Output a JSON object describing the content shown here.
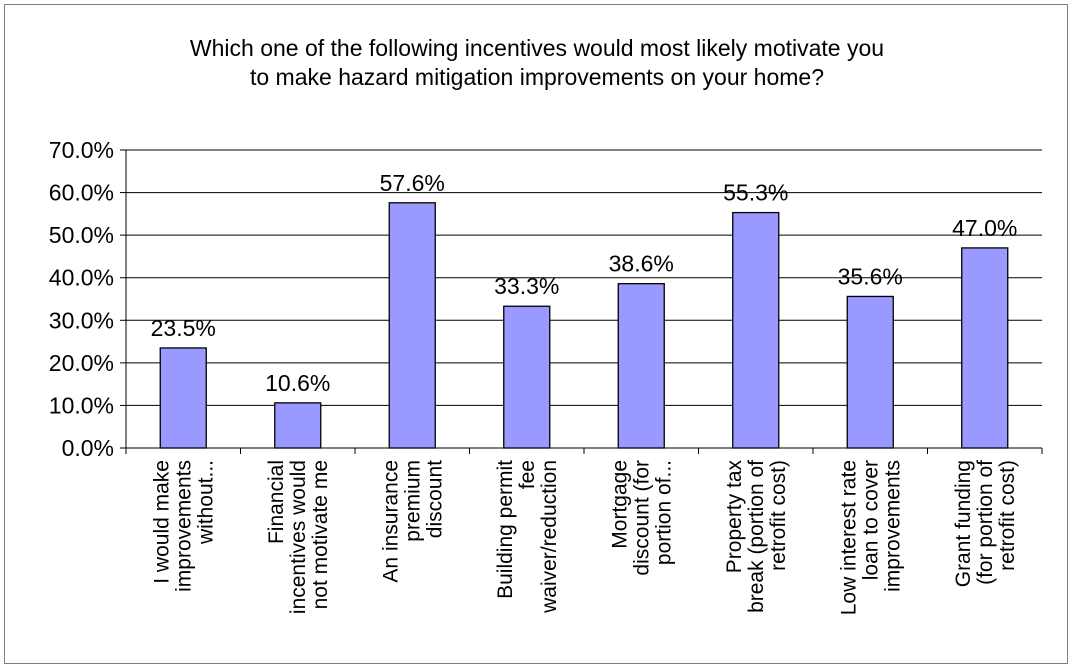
{
  "chart_data": {
    "type": "bar",
    "title_lines": [
      "Which one of the following incentives would most likely motivate you",
      "to make hazard mitigation improvements on your home?"
    ],
    "categories": [
      [
        "I would make",
        "improvements",
        "without..."
      ],
      [
        "Financial",
        "incentives would",
        "not motivate me"
      ],
      [
        "An insurance",
        "premium",
        "discount"
      ],
      [
        "Building permit",
        "fee",
        "waiver/reduction"
      ],
      [
        "Mortgage",
        "discount (for",
        "portion of..."
      ],
      [
        "Property tax",
        "break (portion of",
        "retrofit cost)"
      ],
      [
        "Low interest rate",
        "loan to cover",
        "improvements"
      ],
      [
        "Grant funding",
        "(for portion of",
        "retrofit cost)"
      ]
    ],
    "values": [
      23.5,
      10.6,
      57.6,
      33.3,
      38.6,
      55.3,
      35.6,
      47.0
    ],
    "data_labels": [
      "23.5%",
      "10.6%",
      "57.6%",
      "33.3%",
      "38.6%",
      "55.3%",
      "35.6%",
      "47.0%"
    ],
    "ylim": [
      0,
      70
    ],
    "yticks": [
      0,
      10,
      20,
      30,
      40,
      50,
      60,
      70
    ],
    "ytick_labels": [
      "0.0%",
      "10.0%",
      "20.0%",
      "30.0%",
      "40.0%",
      "50.0%",
      "60.0%",
      "70.0%"
    ],
    "grid": true,
    "legend": "none",
    "colors": {
      "bar_fill": "#9999ff",
      "bar_stroke": "#000000",
      "gridline": "#000000",
      "frame": "#7f7f7f"
    }
  }
}
